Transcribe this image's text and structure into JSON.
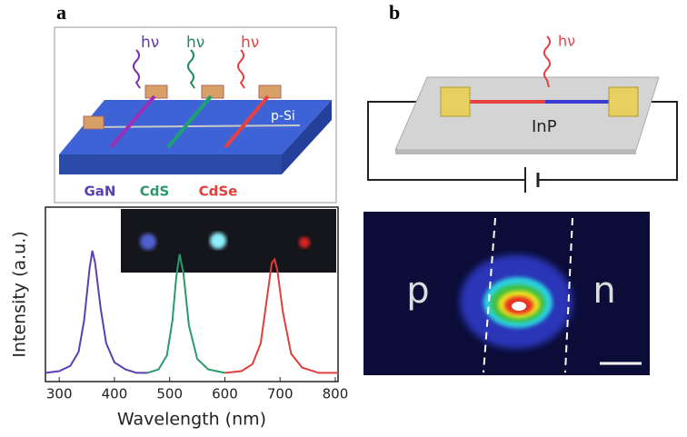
{
  "panel_a": {
    "label": "a",
    "photon_labels": [
      "hν",
      "hν",
      "hν"
    ],
    "substrate_label": "p-Si"
  },
  "panel_b": {
    "label": "b",
    "photon_label": "hν",
    "wire_label": "InP",
    "left_label": "p",
    "right_label": "n"
  },
  "chart_data": {
    "type": "line",
    "xlabel": "Wavelength (nm)",
    "ylabel": "Intensity (a.u.)",
    "xlim": [
      275,
      805
    ],
    "ylim": [
      0,
      1
    ],
    "xticks": [
      300,
      400,
      500,
      600,
      700,
      800
    ],
    "series": [
      {
        "name": "GaN",
        "color": "#5a3fb0",
        "x": [
          275,
          300,
          320,
          335,
          345,
          355,
          360,
          365,
          375,
          385,
          400,
          420,
          440,
          460
        ],
        "values": [
          0.05,
          0.06,
          0.09,
          0.17,
          0.35,
          0.65,
          0.75,
          0.68,
          0.42,
          0.22,
          0.11,
          0.07,
          0.05,
          0.05
        ]
      },
      {
        "name": "CdS",
        "color": "#2a9a6a",
        "x": [
          460,
          480,
          495,
          505,
          512,
          518,
          525,
          535,
          550,
          570,
          600
        ],
        "values": [
          0.05,
          0.07,
          0.15,
          0.35,
          0.6,
          0.73,
          0.62,
          0.32,
          0.13,
          0.07,
          0.05
        ]
      },
      {
        "name": "CdSe",
        "color": "#e0403a",
        "x": [
          600,
          630,
          650,
          665,
          675,
          685,
          690,
          695,
          705,
          720,
          740,
          770,
          805
        ],
        "values": [
          0.05,
          0.06,
          0.1,
          0.22,
          0.45,
          0.68,
          0.7,
          0.64,
          0.4,
          0.16,
          0.08,
          0.05,
          0.05
        ]
      }
    ]
  }
}
